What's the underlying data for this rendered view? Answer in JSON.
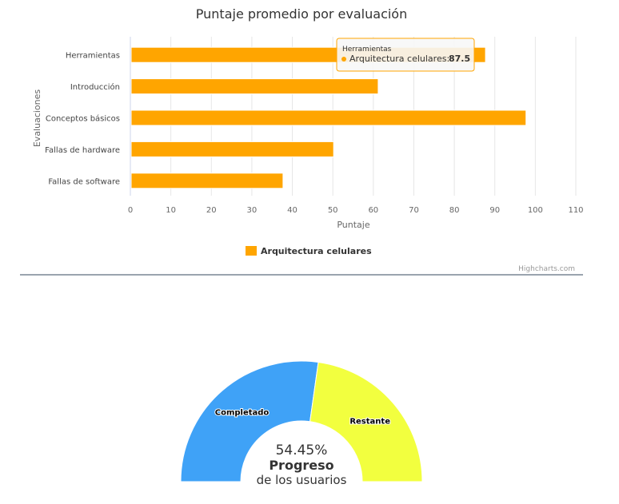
{
  "chart_data": [
    {
      "type": "bar",
      "orientation": "horizontal",
      "title": "Puntaje promedio por evaluación",
      "xlabel": "Puntaje",
      "ylabel": "Evaluaciones",
      "categories": [
        "Herramientas",
        "Introducción",
        "Conceptos básicos",
        "Fallas de hardware",
        "Fallas de software"
      ],
      "series": [
        {
          "name": "Arquitectura celulares",
          "values": [
            87.5,
            61,
            97.5,
            50,
            37.5
          ],
          "color": "#FFA500"
        }
      ],
      "xlim": [
        0,
        110
      ],
      "xticks": [
        0,
        10,
        20,
        30,
        40,
        50,
        60,
        70,
        80,
        90,
        100,
        110
      ],
      "grid": "vertical",
      "legend_position": "bottom-center",
      "tooltip": {
        "category": "Herramientas",
        "series_label": "Arquitectura celulares:",
        "value": "87.5"
      },
      "credits": "Highcharts.com"
    },
    {
      "type": "pie",
      "variant": "semi-donut",
      "center_value": "54.45%",
      "center_title": "Progreso",
      "center_subtitle": "de los usuarios",
      "slices": [
        {
          "label": "Completado",
          "value": 54.45,
          "color": "#3FA2F7"
        },
        {
          "label": "Restante",
          "value": 45.55,
          "color": "#F2FF3F"
        }
      ]
    }
  ]
}
